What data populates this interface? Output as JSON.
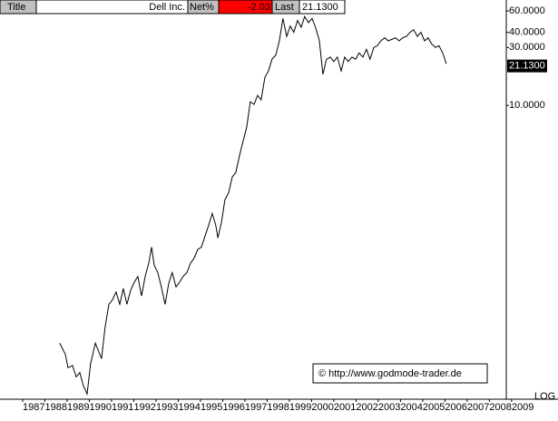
{
  "header": {
    "title_label": "Title",
    "name": "Dell Inc.",
    "net_label": "Net%",
    "net_value": -2.03,
    "last_label": "Last"
  },
  "chart_data": {
    "type": "line",
    "log": true,
    "color": "#000000",
    "x": [
      1988.67,
      1988.92,
      1989.04,
      1989.24,
      1989.41,
      1989.57,
      1989.73,
      1989.9,
      1990.06,
      1990.27,
      1990.39,
      1990.55,
      1990.71,
      1990.88,
      1991.04,
      1991.2,
      1991.37,
      1991.53,
      1991.69,
      1991.86,
      1992.02,
      1992.18,
      1992.35,
      1992.51,
      1992.67,
      1992.8,
      1992.92,
      1993.08,
      1993.24,
      1993.41,
      1993.57,
      1993.73,
      1993.9,
      1994.06,
      1994.22,
      1994.39,
      1994.55,
      1994.71,
      1994.88,
      1995.04,
      1995.2,
      1995.37,
      1995.53,
      1995.69,
      1995.78,
      1995.94,
      1996.1,
      1996.27,
      1996.43,
      1996.59,
      1996.76,
      1996.92,
      1997.08,
      1997.24,
      1997.41,
      1997.57,
      1997.73,
      1997.9,
      1998.06,
      1998.22,
      1998.39,
      1998.55,
      1998.71,
      1998.88,
      1999.04,
      1999.2,
      1999.37,
      1999.53,
      1999.69,
      1999.86,
      2000.02,
      2000.18,
      2000.35,
      2000.51,
      2000.67,
      2000.84,
      2001.0,
      2001.16,
      2001.33,
      2001.49,
      2001.65,
      2001.82,
      2001.98,
      2002.14,
      2002.31,
      2002.47,
      2002.63,
      2002.8,
      2002.96,
      2003.12,
      2003.29,
      2003.45,
      2003.61,
      2003.78,
      2003.94,
      2004.1,
      2004.27,
      2004.43,
      2004.59,
      2004.76,
      2004.92,
      2005.08,
      2005.24,
      2005.41,
      2005.57,
      2005.73,
      2005.9,
      2006.06
    ],
    "values": [
      0.11,
      0.089,
      0.069,
      0.072,
      0.058,
      0.063,
      0.049,
      0.042,
      0.075,
      0.11,
      0.097,
      0.082,
      0.15,
      0.23,
      0.25,
      0.29,
      0.23,
      0.31,
      0.23,
      0.3,
      0.35,
      0.39,
      0.27,
      0.39,
      0.5,
      0.68,
      0.48,
      0.42,
      0.32,
      0.23,
      0.34,
      0.42,
      0.32,
      0.35,
      0.39,
      0.42,
      0.5,
      0.55,
      0.65,
      0.68,
      0.83,
      1.03,
      1.29,
      1.03,
      0.81,
      1.08,
      1.67,
      1.92,
      2.57,
      2.8,
      3.9,
      5.1,
      6.6,
      10.7,
      10.2,
      12.1,
      11.1,
      17.1,
      19.2,
      24,
      26,
      34,
      52,
      37,
      45,
      40,
      50,
      44,
      54,
      48,
      52,
      44,
      34,
      18,
      24,
      25,
      23,
      25,
      19.2,
      25,
      23,
      25,
      24,
      27,
      25,
      29,
      24,
      30,
      31,
      34,
      36,
      34,
      35,
      36,
      34,
      36,
      37,
      40,
      42,
      37,
      40,
      34,
      36,
      32,
      30,
      31,
      27,
      22
    ],
    "xlim": [
      1985.98,
      2008.76
    ],
    "ylim": [
      0.038,
      73.8
    ],
    "xticks": [
      1987,
      1988,
      1989,
      1990,
      1991,
      1992,
      1993,
      1994,
      1995,
      1996,
      1997,
      1998,
      1999,
      2000,
      2001,
      2002,
      2003,
      2004,
      2005,
      2006,
      2007,
      2008,
      2009
    ],
    "yticks": [
      {
        "value": 60,
        "label": "60.0000"
      },
      {
        "value": 40,
        "label": "40.0000"
      },
      {
        "value": 30,
        "label": "30.0000"
      },
      {
        "value": 10,
        "label": "10.0000"
      }
    ],
    "last": {
      "value": 21.13,
      "label": "21.1300"
    },
    "annotation": "© http://www.godmode-trader.de",
    "scale_label": "LOG"
  }
}
